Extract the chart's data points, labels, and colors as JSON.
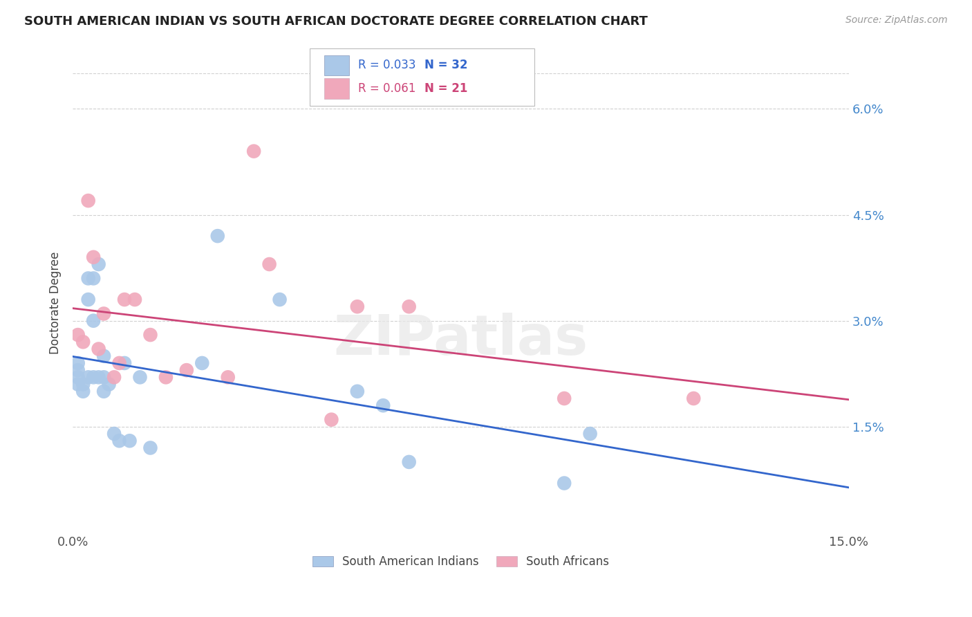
{
  "title": "SOUTH AMERICAN INDIAN VS SOUTH AFRICAN DOCTORATE DEGREE CORRELATION CHART",
  "source": "Source: ZipAtlas.com",
  "ylabel": "Doctorate Degree",
  "xlim": [
    0.0,
    0.15
  ],
  "ylim": [
    0.0,
    0.065
  ],
  "yticks": [
    0.015,
    0.03,
    0.045,
    0.06
  ],
  "ytick_labels_right": [
    "1.5%",
    "3.0%",
    "4.5%",
    "6.0%"
  ],
  "xticks": [
    0.0,
    0.15
  ],
  "xtick_labels": [
    "0.0%",
    "15.0%"
  ],
  "blue_R": 0.033,
  "blue_N": 32,
  "pink_R": 0.061,
  "pink_N": 21,
  "blue_color": "#aac8e8",
  "pink_color": "#f0a8bb",
  "blue_line_color": "#3366cc",
  "pink_line_color": "#cc4477",
  "legend_blue_label": "South American Indians",
  "legend_pink_label": "South Africans",
  "blue_scatter_x": [
    0.001,
    0.001,
    0.001,
    0.001,
    0.002,
    0.002,
    0.003,
    0.003,
    0.003,
    0.004,
    0.004,
    0.004,
    0.005,
    0.005,
    0.006,
    0.006,
    0.006,
    0.007,
    0.008,
    0.009,
    0.01,
    0.011,
    0.013,
    0.015,
    0.025,
    0.028,
    0.04,
    0.055,
    0.06,
    0.065,
    0.095,
    0.1
  ],
  "blue_scatter_y": [
    0.024,
    0.023,
    0.022,
    0.021,
    0.021,
    0.02,
    0.036,
    0.033,
    0.022,
    0.036,
    0.03,
    0.022,
    0.038,
    0.022,
    0.025,
    0.022,
    0.02,
    0.021,
    0.014,
    0.013,
    0.024,
    0.013,
    0.022,
    0.012,
    0.024,
    0.042,
    0.033,
    0.02,
    0.018,
    0.01,
    0.007,
    0.014
  ],
  "pink_scatter_x": [
    0.001,
    0.002,
    0.003,
    0.004,
    0.005,
    0.006,
    0.008,
    0.009,
    0.01,
    0.012,
    0.015,
    0.018,
    0.022,
    0.03,
    0.035,
    0.038,
    0.05,
    0.055,
    0.065,
    0.095,
    0.12
  ],
  "pink_scatter_y": [
    0.028,
    0.027,
    0.047,
    0.039,
    0.026,
    0.031,
    0.022,
    0.024,
    0.033,
    0.033,
    0.028,
    0.022,
    0.023,
    0.022,
    0.054,
    0.038,
    0.016,
    0.032,
    0.032,
    0.019,
    0.019
  ],
  "watermark": "ZIPatlas",
  "background_color": "#ffffff",
  "grid_color": "#d0d0d0"
}
